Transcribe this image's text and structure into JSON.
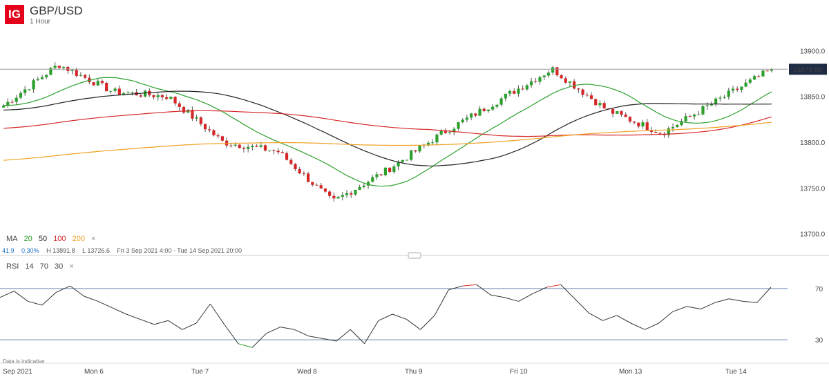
{
  "header": {
    "logo": "IG",
    "symbol": "GBP/USD",
    "timeframe": "1 Hour"
  },
  "ma_legend": {
    "label": "MA",
    "periods": [
      {
        "value": "20",
        "color": "#2ca02c"
      },
      {
        "value": "50",
        "color": "#222222"
      },
      {
        "value": "100",
        "color": "#d62728"
      },
      {
        "value": "200",
        "color": "#f0a020"
      }
    ],
    "close": "×"
  },
  "stats": {
    "change": "41.9",
    "change_pct": "0.30%",
    "high": "H 13891.8",
    "low": "L 13726.6",
    "range": "Fri 3 Sep 2021 4:00 - Tue 14 Sep 2021 20:00"
  },
  "rsi_legend": {
    "label": "RSI",
    "params": [
      "14",
      "70",
      "30"
    ],
    "close": "×"
  },
  "footnote": "Data is indicative",
  "price_tag": "13879.65",
  "chart_data": [
    {
      "type": "candlestick",
      "title": "GBP/USD",
      "x_ticks": [
        "Sep 2021",
        "Mon 6",
        "Tue 7",
        "Wed 8",
        "Thu 9",
        "Fri 10",
        "Mon 13",
        "Tue 14"
      ],
      "y_ticks": [
        "13900.0",
        "13850.0",
        "13800.0",
        "13750.0",
        "13700.0"
      ],
      "ylim": [
        13690,
        13910
      ],
      "current_price": 13879.65,
      "key_points": [
        {
          "x": "Fri 3",
          "close": 13840
        },
        {
          "x": "Fri 3 late",
          "close": 13885
        },
        {
          "x": "Mon 6",
          "close": 13855
        },
        {
          "x": "Tue 7",
          "close": 13850
        },
        {
          "x": "Tue 7 late",
          "close": 13800
        },
        {
          "x": "Wed 8",
          "close": 13790
        },
        {
          "x": "Wed 8 late",
          "close": 13735
        },
        {
          "x": "Thu 9",
          "close": 13770
        },
        {
          "x": "Thu 9 late",
          "close": 13810
        },
        {
          "x": "Fri 10",
          "close": 13845
        },
        {
          "x": "Fri 10 late",
          "close": 13880
        },
        {
          "x": "Mon 13",
          "close": 13835
        },
        {
          "x": "Mon 13 late",
          "close": 13810
        },
        {
          "x": "Tue 14",
          "close": 13845
        },
        {
          "x": "Tue 14 late",
          "close": 13879.65
        }
      ],
      "moving_averages": [
        "20",
        "50",
        "100",
        "200"
      ],
      "grid": false
    },
    {
      "type": "line",
      "title": "RSI",
      "levels": [
        "70",
        "30"
      ],
      "ylim": [
        15,
        85
      ],
      "values": [
        63,
        68,
        60,
        57,
        67,
        72,
        64,
        60,
        55,
        50,
        46,
        42,
        45,
        38,
        43,
        58,
        42,
        27,
        24,
        35,
        40,
        38,
        33,
        31,
        29,
        38,
        27,
        45,
        50,
        46,
        38,
        49,
        69,
        72,
        73,
        65,
        63,
        60,
        66,
        71,
        73,
        62,
        51,
        45,
        49,
        43,
        38,
        43,
        52,
        56,
        54,
        59,
        62,
        60,
        59,
        71
      ],
      "overbought_segments": [
        "Fri 10",
        "Mon 13"
      ],
      "oversold_segments": [
        "Tue 7 late"
      ]
    }
  ]
}
